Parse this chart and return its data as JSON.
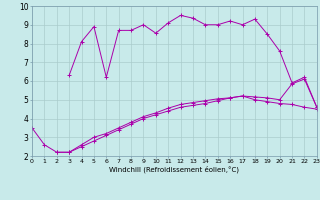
{
  "xlabel": "Windchill (Refroidissement éolien,°C)",
  "xlim": [
    0,
    23
  ],
  "ylim": [
    2,
    10
  ],
  "xticks": [
    0,
    1,
    2,
    3,
    4,
    5,
    6,
    7,
    8,
    9,
    10,
    11,
    12,
    13,
    14,
    15,
    16,
    17,
    18,
    19,
    20,
    21,
    22,
    23
  ],
  "yticks": [
    2,
    3,
    4,
    5,
    6,
    7,
    8,
    9,
    10
  ],
  "bg_color": "#c8eaea",
  "line_color": "#aa00aa",
  "grid_color": "#aacccc",
  "line1_x": [
    3,
    4,
    5,
    6,
    7,
    8,
    9,
    10,
    11,
    12,
    13,
    14,
    15,
    16,
    17,
    18,
    19,
    20,
    21,
    22,
    23
  ],
  "line1_y": [
    6.3,
    8.1,
    8.9,
    6.2,
    8.7,
    8.7,
    9.0,
    8.55,
    9.1,
    9.5,
    9.35,
    9.0,
    9.0,
    9.2,
    9.0,
    9.3,
    8.5,
    7.6,
    5.9,
    6.2,
    4.6
  ],
  "line2_x": [
    0,
    1,
    2,
    3,
    4,
    5,
    6,
    7,
    8,
    9,
    10,
    11,
    12,
    13,
    14,
    15,
    16,
    17,
    18,
    19,
    20,
    21,
    22,
    23
  ],
  "line2_y": [
    3.5,
    2.6,
    2.2,
    2.2,
    2.5,
    2.8,
    3.1,
    3.4,
    3.7,
    4.0,
    4.2,
    4.4,
    4.6,
    4.7,
    4.8,
    4.95,
    5.1,
    5.2,
    5.0,
    4.9,
    4.8,
    4.75,
    4.6,
    4.5
  ],
  "line3_x": [
    2,
    3,
    4,
    5,
    6,
    7,
    8,
    9,
    10,
    11,
    12,
    13,
    14,
    15,
    16,
    17,
    18,
    19,
    20,
    21,
    22,
    23
  ],
  "line3_y": [
    2.2,
    2.2,
    2.6,
    3.0,
    3.2,
    3.5,
    3.8,
    4.1,
    4.3,
    4.55,
    4.75,
    4.85,
    4.95,
    5.05,
    5.1,
    5.2,
    5.15,
    5.1,
    5.0,
    5.85,
    6.1,
    4.6
  ]
}
